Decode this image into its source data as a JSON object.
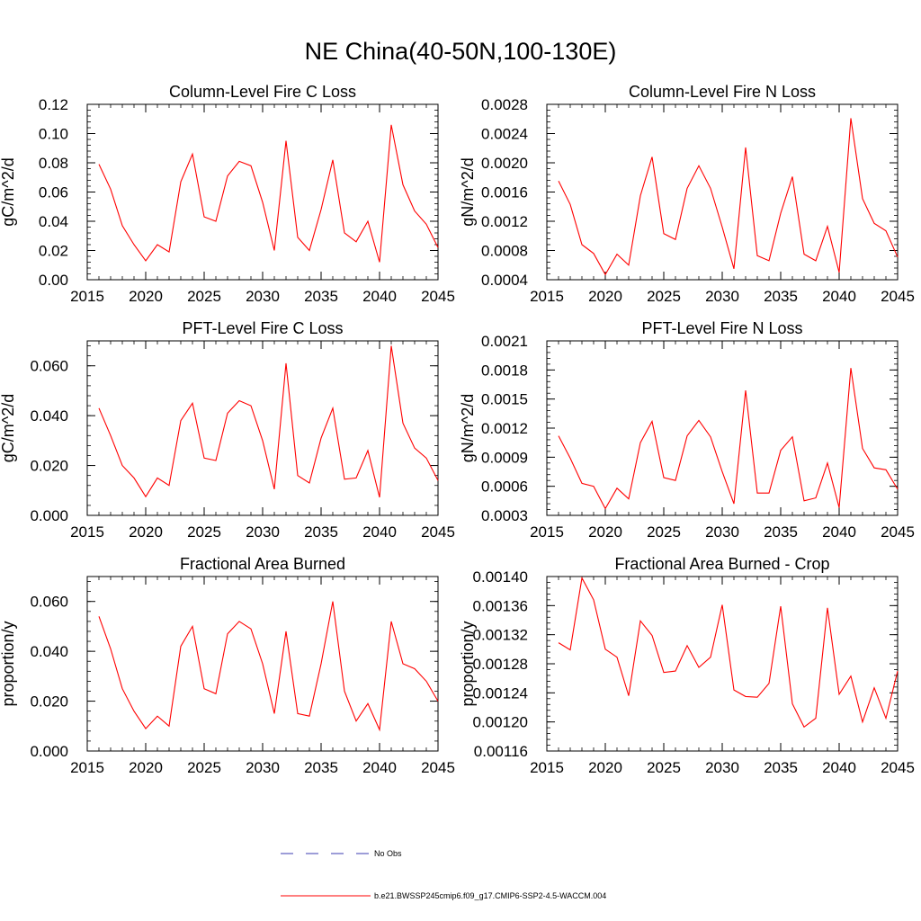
{
  "figure": {
    "title": "NE China(40-50N,100-130E)"
  },
  "legend": {
    "obs_label": "No Obs",
    "obs_color": "#3b3bb0",
    "model_label": "b.e21.BWSSP245cmip6.f09_g17.CMIP6-SSP2-4.5-WACCM.004",
    "model_color": "#ff0000"
  },
  "chart_data": [
    {
      "type": "line",
      "title": "Column-Level Fire C Loss",
      "ylabel": "gC/m^2/d",
      "xlim": [
        2015,
        2045
      ],
      "ylim": [
        0.0,
        0.12
      ],
      "xticks": [
        2015,
        2020,
        2025,
        2030,
        2035,
        2040,
        2045
      ],
      "yticks": [
        "0.00",
        "0.02",
        "0.04",
        "0.06",
        "0.08",
        "0.10",
        "0.12"
      ],
      "yminor": 0.004,
      "x": [
        2016,
        2017,
        2018,
        2019,
        2020,
        2021,
        2022,
        2023,
        2024,
        2025,
        2026,
        2027,
        2028,
        2029,
        2030,
        2031,
        2032,
        2033,
        2034,
        2035,
        2036,
        2037,
        2038,
        2039,
        2040,
        2041,
        2042,
        2043,
        2044,
        2045
      ],
      "series": [
        {
          "color": "#ff0000",
          "values": [
            0.079,
            0.062,
            0.037,
            0.024,
            0.013,
            0.024,
            0.019,
            0.067,
            0.086,
            0.043,
            0.04,
            0.071,
            0.081,
            0.078,
            0.053,
            0.02,
            0.095,
            0.029,
            0.02,
            0.048,
            0.082,
            0.032,
            0.026,
            0.04,
            0.012,
            0.106,
            0.065,
            0.047,
            0.038,
            0.022
          ]
        }
      ]
    },
    {
      "type": "line",
      "title": "Column-Level Fire N Loss",
      "ylabel": "gN/m^2/d",
      "xlim": [
        2015,
        2045
      ],
      "ylim": [
        0.0004,
        0.0028
      ],
      "xticks": [
        2015,
        2020,
        2025,
        2030,
        2035,
        2040,
        2045
      ],
      "yticks": [
        "0.0004",
        "0.0008",
        "0.0012",
        "0.0016",
        "0.0020",
        "0.0024",
        "0.0028"
      ],
      "yminor": 8e-05,
      "x": [
        2016,
        2017,
        2018,
        2019,
        2020,
        2021,
        2022,
        2023,
        2024,
        2025,
        2026,
        2027,
        2028,
        2029,
        2030,
        2031,
        2032,
        2033,
        2034,
        2035,
        2036,
        2037,
        2038,
        2039,
        2040,
        2041,
        2042,
        2043,
        2044,
        2045
      ],
      "series": [
        {
          "color": "#ff0000",
          "values": [
            0.00175,
            0.00143,
            0.00088,
            0.00076,
            0.00047,
            0.00075,
            0.0006,
            0.00155,
            0.00208,
            0.00103,
            0.00095,
            0.00165,
            0.00196,
            0.00165,
            0.00112,
            0.00055,
            0.00221,
            0.00073,
            0.00066,
            0.00131,
            0.00181,
            0.00075,
            0.00066,
            0.00113,
            0.0005,
            0.00261,
            0.00151,
            0.00117,
            0.00107,
            0.00071
          ]
        }
      ]
    },
    {
      "type": "line",
      "title": "PFT-Level Fire C Loss",
      "ylabel": "gC/m^2/d",
      "xlim": [
        2015,
        2045
      ],
      "ylim": [
        0.0,
        0.07
      ],
      "xticks": [
        2015,
        2020,
        2025,
        2030,
        2035,
        2040,
        2045
      ],
      "yticks": [
        "0.000",
        "0.020",
        "0.040",
        "0.060"
      ],
      "yminor": 0.004,
      "x": [
        2016,
        2017,
        2018,
        2019,
        2020,
        2021,
        2022,
        2023,
        2024,
        2025,
        2026,
        2027,
        2028,
        2029,
        2030,
        2031,
        2032,
        2033,
        2034,
        2035,
        2036,
        2037,
        2038,
        2039,
        2040,
        2041,
        2042,
        2043,
        2044,
        2045
      ],
      "series": [
        {
          "color": "#ff0000",
          "values": [
            0.043,
            0.032,
            0.02,
            0.015,
            0.0075,
            0.015,
            0.012,
            0.038,
            0.045,
            0.023,
            0.022,
            0.041,
            0.046,
            0.044,
            0.03,
            0.0105,
            0.061,
            0.016,
            0.013,
            0.031,
            0.043,
            0.0145,
            0.015,
            0.026,
            0.0072,
            0.068,
            0.037,
            0.027,
            0.023,
            0.014
          ]
        }
      ]
    },
    {
      "type": "line",
      "title": "PFT-Level Fire N Loss",
      "ylabel": "gN/m^2/d",
      "xlim": [
        2015,
        2045
      ],
      "ylim": [
        0.0003,
        0.0021
      ],
      "xticks": [
        2015,
        2020,
        2025,
        2030,
        2035,
        2040,
        2045
      ],
      "yticks": [
        "0.0003",
        "0.0006",
        "0.0009",
        "0.0012",
        "0.0015",
        "0.0018",
        "0.0021"
      ],
      "yminor": 6e-05,
      "x": [
        2016,
        2017,
        2018,
        2019,
        2020,
        2021,
        2022,
        2023,
        2024,
        2025,
        2026,
        2027,
        2028,
        2029,
        2030,
        2031,
        2032,
        2033,
        2034,
        2035,
        2036,
        2037,
        2038,
        2039,
        2040,
        2041,
        2042,
        2043,
        2044,
        2045
      ],
      "series": [
        {
          "color": "#ff0000",
          "values": [
            0.00112,
            0.00089,
            0.00063,
            0.0006,
            0.00037,
            0.00058,
            0.00047,
            0.00105,
            0.00127,
            0.00069,
            0.00066,
            0.00112,
            0.00128,
            0.00111,
            0.00075,
            0.00042,
            0.00159,
            0.00053,
            0.00053,
            0.00097,
            0.00111,
            0.00045,
            0.00048,
            0.00084,
            0.00038,
            0.00182,
            0.00099,
            0.00079,
            0.00077,
            0.00057
          ]
        }
      ]
    },
    {
      "type": "line",
      "title": "Fractional Area Burned",
      "ylabel": "proportion/y",
      "xlim": [
        2015,
        2045
      ],
      "ylim": [
        0.0,
        0.07
      ],
      "xticks": [
        2015,
        2020,
        2025,
        2030,
        2035,
        2040,
        2045
      ],
      "yticks": [
        "0.000",
        "0.020",
        "0.040",
        "0.060"
      ],
      "yminor": 0.004,
      "x": [
        2016,
        2017,
        2018,
        2019,
        2020,
        2021,
        2022,
        2023,
        2024,
        2025,
        2026,
        2027,
        2028,
        2029,
        2030,
        2031,
        2032,
        2033,
        2034,
        2035,
        2036,
        2037,
        2038,
        2039,
        2040,
        2041,
        2042,
        2043,
        2044,
        2045
      ],
      "series": [
        {
          "color": "#ff0000",
          "values": [
            0.054,
            0.041,
            0.025,
            0.016,
            0.009,
            0.014,
            0.01,
            0.042,
            0.05,
            0.025,
            0.023,
            0.047,
            0.052,
            0.049,
            0.035,
            0.015,
            0.048,
            0.015,
            0.014,
            0.035,
            0.06,
            0.024,
            0.012,
            0.019,
            0.0085,
            0.052,
            0.035,
            0.033,
            0.028,
            0.02
          ]
        }
      ]
    },
    {
      "type": "line",
      "title": "Fractional Area Burned - Crop",
      "ylabel": "proportion/y",
      "xlim": [
        2015,
        2045
      ],
      "ylim": [
        0.00116,
        0.0014
      ],
      "xticks": [
        2015,
        2020,
        2025,
        2030,
        2035,
        2040,
        2045
      ],
      "yticks": [
        "0.00116",
        "0.00120",
        "0.00124",
        "0.00128",
        "0.00132",
        "0.00136",
        "0.00140"
      ],
      "yminor": 8e-06,
      "x": [
        2016,
        2017,
        2018,
        2019,
        2020,
        2021,
        2022,
        2023,
        2024,
        2025,
        2026,
        2027,
        2028,
        2029,
        2030,
        2031,
        2032,
        2033,
        2034,
        2035,
        2036,
        2037,
        2038,
        2039,
        2040,
        2041,
        2042,
        2043,
        2044,
        2045
      ],
      "series": [
        {
          "color": "#ff0000",
          "values": [
            0.001309,
            0.001299,
            0.001398,
            0.001368,
            0.0013,
            0.001289,
            0.001236,
            0.001339,
            0.001319,
            0.001268,
            0.00127,
            0.001305,
            0.001275,
            0.001289,
            0.001361,
            0.001244,
            0.001235,
            0.001234,
            0.001253,
            0.001359,
            0.001225,
            0.001193,
            0.001205,
            0.001357,
            0.001238,
            0.001263,
            0.0012,
            0.001247,
            0.001205,
            0.00127
          ]
        }
      ]
    }
  ]
}
